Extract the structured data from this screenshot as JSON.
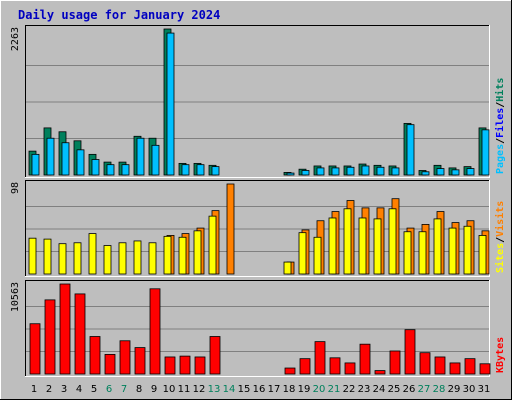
{
  "colors": {
    "background": "#bebebe",
    "hits": "#00805c",
    "files": "#0000ff",
    "pages": "#00c0ff",
    "visits": "#ff8000",
    "sites": "#ffff00",
    "kbytes": "#ff0000",
    "title": "#0000c0",
    "weekday": "#000000",
    "weekend": "#00805c"
  },
  "chart_data": {
    "type": "bar",
    "title": "Daily usage for January 2024",
    "categories": [
      "1",
      "2",
      "3",
      "4",
      "5",
      "6",
      "7",
      "8",
      "9",
      "10",
      "11",
      "12",
      "13",
      "14",
      "15",
      "16",
      "17",
      "18",
      "19",
      "20",
      "21",
      "22",
      "23",
      "24",
      "25",
      "26",
      "27",
      "28",
      "29",
      "30",
      "31"
    ],
    "weekend_days": [
      "6",
      "7",
      "13",
      "14",
      "20",
      "21",
      "27",
      "28"
    ],
    "panels": [
      {
        "id": "hits",
        "max_label": "2263",
        "ylim": [
          0,
          2263
        ],
        "grid": true,
        "legend": [
          "Pages",
          "/",
          "Files",
          "/",
          "Hits"
        ],
        "series": [
          {
            "name": "Hits",
            "values": [
              370,
              730,
              670,
              530,
              320,
              200,
              200,
              600,
              570,
              2263,
              180,
              180,
              150,
              0,
              0,
              0,
              0,
              40,
              90,
              140,
              140,
              140,
              170,
              150,
              140,
              800,
              70,
              150,
              110,
              130,
              730
            ]
          },
          {
            "name": "Files",
            "values": [
              320,
              570,
              500,
              390,
              240,
              160,
              160,
              570,
              460,
              2200,
              160,
              160,
              130,
              0,
              0,
              0,
              0,
              30,
              70,
              110,
              110,
              120,
              140,
              120,
              110,
              780,
              50,
              100,
              80,
              100,
              700
            ]
          },
          {
            "name": "Pages",
            "values": [
              0,
              0,
              0,
              0,
              0,
              0,
              0,
              0,
              0,
              0,
              0,
              0,
              0,
              0,
              0,
              0,
              0,
              0,
              0,
              0,
              0,
              0,
              0,
              0,
              0,
              0,
              0,
              0,
              0,
              0,
              0
            ]
          }
        ]
      },
      {
        "id": "visits",
        "max_label": "98",
        "ylim": [
          0,
          98
        ],
        "grid": true,
        "legend": [
          "Sites",
          "/",
          "Visits"
        ],
        "series": [
          {
            "name": "Visits",
            "values": [
              0,
              0,
              0,
              0,
              0,
              0,
              0,
              0,
              0,
              42,
              44,
              50,
              69,
              98,
              0,
              0,
              0,
              13,
              48,
              58,
              68,
              80,
              72,
              72,
              82,
              50,
              54,
              68,
              56,
              58,
              47
            ]
          },
          {
            "name": "Sites",
            "values": [
              39,
              38,
              33,
              34,
              44,
              31,
              34,
              36,
              34,
              41,
              40,
              47,
              63,
              0,
              0,
              0,
              0,
              13,
              45,
              40,
              61,
              71,
              61,
              60,
              71,
              46,
              46,
              60,
              50,
              52,
              42
            ]
          }
        ]
      },
      {
        "id": "kbytes",
        "max_label": "10563",
        "ylim": [
          0,
          10563
        ],
        "grid": true,
        "legend": [
          "KBytes"
        ],
        "series": [
          {
            "name": "KBytes",
            "values": [
              5900,
              8700,
              10563,
              9400,
              4400,
              2300,
              3900,
              3100,
              10000,
              2000,
              2100,
              2000,
              4400,
              0,
              0,
              0,
              0,
              700,
              1800,
              3800,
              1900,
              1300,
              3500,
              400,
              2700,
              5200,
              2500,
              2000,
              1300,
              1800,
              1200
            ]
          }
        ]
      }
    ]
  }
}
